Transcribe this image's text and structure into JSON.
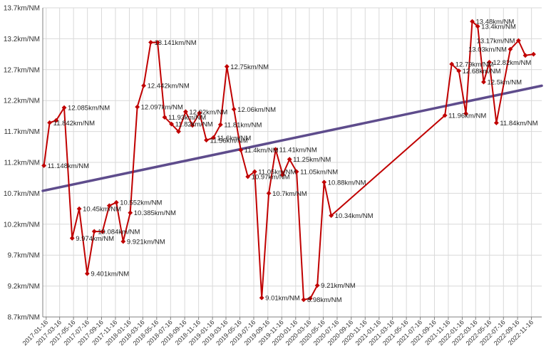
{
  "colors": {
    "series": "#c00000",
    "trend": "#5e4c8c",
    "grid": "#d9d9d9",
    "axis": "#808080"
  },
  "chart_data": {
    "type": "line",
    "title": "",
    "xlabel": "",
    "ylabel": "",
    "y_unit_suffix": "km/NM",
    "ylim": [
      8.7,
      13.7
    ],
    "yticks": [
      8.7,
      9.2,
      9.7,
      10.2,
      10.7,
      11.2,
      11.7,
      12.2,
      12.7,
      13.2,
      13.7
    ],
    "ytick_labels": [
      "8.7km/NM",
      "9.2km/NM",
      "9.7km/NM",
      "10.2km/NM",
      "10.7km/NM",
      "11.2km/NM",
      "11.7km/NM",
      "12.2km/NM",
      "12.7km/NM",
      "13.2km/NM",
      "13.7km/NM"
    ],
    "xlim": [
      "2017-01-01",
      "2022-12-31"
    ],
    "xtick_labels": [
      "2017-01-16",
      "2017-03-16",
      "2017-05-16",
      "2017-07-16",
      "2017-09-16",
      "2017-11-16",
      "2018-01-16",
      "2018-03-16",
      "2018-05-16",
      "2018-07-16",
      "2018-09-16",
      "2018-11-16",
      "2019-01-16",
      "2019-03-16",
      "2019-05-16",
      "2019-07-16",
      "2019-09-16",
      "2019-11-16",
      "2020-01-16",
      "2020-03-16",
      "2020-05-16",
      "2020-07-16",
      "2020-09-16",
      "2020-11-16",
      "2021-01-16",
      "2021-03-16",
      "2021-05-16",
      "2021-07-16",
      "2021-09-16",
      "2021-11-16",
      "2022-01-16",
      "2022-03-16",
      "2022-05-16",
      "2022-07-16",
      "2022-09-16",
      "2022-11-16"
    ],
    "grid": true,
    "legend": "none",
    "series": [
      {
        "points": [
          {
            "x": "2017-01-06",
            "y": 11.148,
            "label": "11.148km/NM"
          },
          {
            "x": "2017-01-31",
            "y": 11.842,
            "label": "11.842km/NM"
          },
          {
            "x": "2017-03-01",
            "y": 11.88,
            "label": ""
          },
          {
            "x": "2017-04-05",
            "y": 12.085,
            "label": "12.085km/NM"
          },
          {
            "x": "2017-05-10",
            "y": 9.974,
            "label": "9.974km/NM"
          },
          {
            "x": "2017-06-10",
            "y": 10.45,
            "label": "10.45km/NM"
          },
          {
            "x": "2017-07-15",
            "y": 9.401,
            "label": "9.401km/NM"
          },
          {
            "x": "2017-08-15",
            "y": 10.084,
            "label": "10.084km/NM"
          },
          {
            "x": "2017-09-20",
            "y": 10.08,
            "label": ""
          },
          {
            "x": "2017-10-20",
            "y": 10.5,
            "label": ""
          },
          {
            "x": "2017-11-20",
            "y": 10.552,
            "label": "10.552km/NM"
          },
          {
            "x": "2017-12-20",
            "y": 9.921,
            "label": "9.921km/NM"
          },
          {
            "x": "2018-01-20",
            "y": 10.385,
            "label": "10.385km/NM"
          },
          {
            "x": "2018-02-20",
            "y": 12.097,
            "label": "12.097km/NM"
          },
          {
            "x": "2018-03-20",
            "y": 12.442,
            "label": "12.442km/NM"
          },
          {
            "x": "2018-04-20",
            "y": 13.141,
            "label": "13.141km/NM"
          },
          {
            "x": "2018-05-20",
            "y": 13.14,
            "label": ""
          },
          {
            "x": "2018-06-20",
            "y": 11.93,
            "label": "11.93km/NM"
          },
          {
            "x": "2018-07-20",
            "y": 11.82,
            "label": "11.82km/NM"
          },
          {
            "x": "2018-08-20",
            "y": 11.7,
            "label": ""
          },
          {
            "x": "2018-09-20",
            "y": 12.02,
            "label": "12.02km/NM"
          },
          {
            "x": "2018-10-20",
            "y": 11.8,
            "label": ""
          },
          {
            "x": "2018-11-20",
            "y": 12.0,
            "label": ""
          },
          {
            "x": "2018-12-20",
            "y": 11.56,
            "label": "11.56km/NM"
          },
          {
            "x": "2019-01-20",
            "y": 11.6,
            "label": "11.6km/NM"
          },
          {
            "x": "2019-02-20",
            "y": 11.81,
            "label": "11.81km/NM"
          },
          {
            "x": "2019-03-20",
            "y": 12.75,
            "label": "12.75km/NM"
          },
          {
            "x": "2019-04-20",
            "y": 12.06,
            "label": "12.06km/NM"
          },
          {
            "x": "2019-05-20",
            "y": 11.4,
            "label": "11.4km/NM"
          },
          {
            "x": "2019-06-20",
            "y": 10.97,
            "label": "10.97km/NM"
          },
          {
            "x": "2019-07-20",
            "y": 11.05,
            "label": "11.05km/NM"
          },
          {
            "x": "2019-08-20",
            "y": 9.01,
            "label": "9.01km/NM"
          },
          {
            "x": "2019-09-20",
            "y": 10.7,
            "label": "10.7km/NM"
          },
          {
            "x": "2019-10-20",
            "y": 11.41,
            "label": "11.41km/NM"
          },
          {
            "x": "2019-11-20",
            "y": 11.0,
            "label": ""
          },
          {
            "x": "2019-12-20",
            "y": 11.25,
            "label": "11.25km/NM"
          },
          {
            "x": "2020-01-20",
            "y": 11.05,
            "label": "11.05km/NM"
          },
          {
            "x": "2020-02-20",
            "y": 8.98,
            "label": "8.98km/NM"
          },
          {
            "x": "2020-03-20",
            "y": 9.0,
            "label": ""
          },
          {
            "x": "2020-04-20",
            "y": 9.21,
            "label": "9.21km/NM"
          },
          {
            "x": "2020-05-20",
            "y": 10.88,
            "label": "10.88km/NM"
          },
          {
            "x": "2020-06-20",
            "y": 10.34,
            "label": "10.34km/NM"
          },
          {
            "x": "2021-11-01",
            "y": 11.96,
            "label": "11.96km/NM"
          },
          {
            "x": "2021-12-01",
            "y": 12.79,
            "label": "12.79km/NM"
          },
          {
            "x": "2022-01-01",
            "y": 12.68,
            "label": "12.68km/NM"
          },
          {
            "x": "2022-02-01",
            "y": 11.99,
            "label": ""
          },
          {
            "x": "2022-03-01",
            "y": 13.48,
            "label": "13.48km/NM"
          },
          {
            "x": "2022-03-25",
            "y": 13.4,
            "label": "13.4km/NM"
          },
          {
            "x": "2022-04-20",
            "y": 12.5,
            "label": "12.5km/NM"
          },
          {
            "x": "2022-05-15",
            "y": 12.82,
            "label": "12.82km/NM"
          },
          {
            "x": "2022-06-15",
            "y": 11.84,
            "label": "11.84km/NM"
          },
          {
            "x": "2022-08-15",
            "y": 13.03,
            "label": "13.03km/NM"
          },
          {
            "x": "2022-09-20",
            "y": 13.17,
            "label": "13.17km/NM"
          },
          {
            "x": "2022-10-20",
            "y": 12.93,
            "label": ""
          },
          {
            "x": "2022-11-25",
            "y": 12.95,
            "label": ""
          }
        ]
      }
    ],
    "trendline": {
      "type": "linear",
      "start": {
        "x": "2017-01-01",
        "y": 10.74
      },
      "end": {
        "x": "2022-12-31",
        "y": 12.44
      }
    }
  }
}
